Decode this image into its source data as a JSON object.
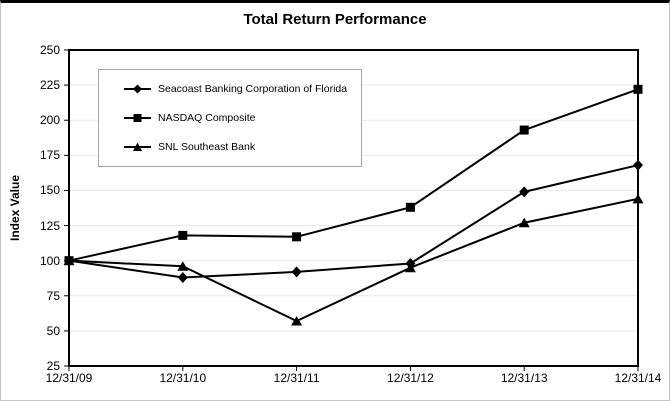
{
  "chart_data": {
    "type": "line",
    "title": "Total Return Performance",
    "ylabel": "Index Value",
    "xlabel": "",
    "categories": [
      "12/31/09",
      "12/31/10",
      "12/31/11",
      "12/31/12",
      "12/31/13",
      "12/31/14"
    ],
    "y_ticks": [
      25,
      50,
      75,
      100,
      125,
      150,
      175,
      200,
      225,
      250
    ],
    "ylim": [
      25,
      250
    ],
    "grid": "horizontal-only",
    "legend_position": "top-left-inside",
    "series": [
      {
        "name": "Seacoast Banking Corporation of Florida",
        "marker": "diamond",
        "color": "#000000",
        "values": [
          100,
          88,
          92,
          98,
          149,
          168
        ]
      },
      {
        "name": "NASDAQ Composite",
        "marker": "square",
        "color": "#000000",
        "values": [
          100,
          118,
          117,
          138,
          193,
          222
        ]
      },
      {
        "name": "SNL Southeast Bank",
        "marker": "triangle",
        "color": "#000000",
        "values": [
          100,
          96,
          57,
          95,
          127,
          144
        ]
      }
    ]
  },
  "colors": {
    "line": "#000000",
    "marker": "#000000",
    "gridline": "#e9e9e9",
    "plot_border": "#000000",
    "legend_border": "#a6a6a6",
    "frame_border": "#c4c4c4",
    "background": "#ffffff"
  }
}
